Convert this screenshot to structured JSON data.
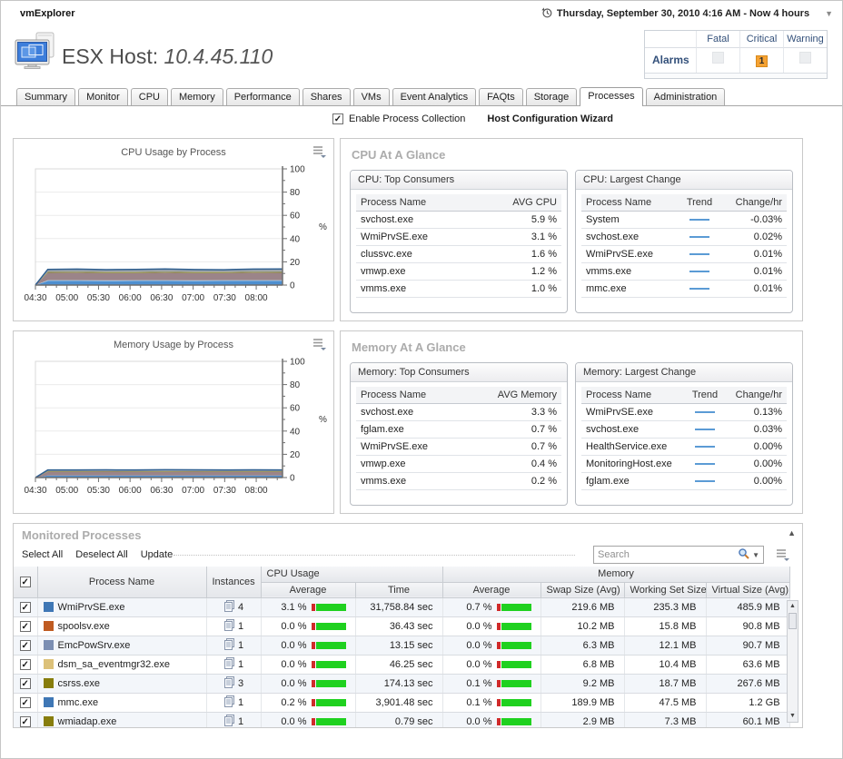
{
  "app": {
    "title": "vmExplorer",
    "time_range": "Thursday, September 30, 2010 4:16 AM - Now 4 hours"
  },
  "header": {
    "title_prefix": "ESX Host:",
    "host": "10.4.45.110",
    "alarms": {
      "row_label": "Alarms",
      "columns": [
        "Fatal",
        "Critical",
        "Warning"
      ],
      "fatal_count": "",
      "critical_count": "1",
      "warning_count": ""
    }
  },
  "tabs": {
    "items": [
      "Summary",
      "Monitor",
      "CPU",
      "Memory",
      "Performance",
      "Shares",
      "VMs",
      "Event Analytics",
      "FAQts",
      "Storage",
      "Processes",
      "Administration"
    ],
    "active": "Processes"
  },
  "subheader": {
    "checkbox_label": "Enable Process Collection",
    "checkbox_checked": true,
    "wizard_link": "Host Configuration Wizard"
  },
  "colors": {
    "accent_blue": "#33507A",
    "critical_orange": "#F5A233",
    "bar_green": "#1FD11F",
    "bar_red": "#D02A2A",
    "trend_line": "#5B9BD5",
    "title_gray": "#ACACAC"
  },
  "chart_data": [
    {
      "type": "area",
      "title": "CPU Usage by Process",
      "ylabel": "%",
      "ylim": [
        0,
        100
      ],
      "grid": true,
      "x_ticks": [
        "04:30",
        "05:00",
        "05:30",
        "06:00",
        "06:30",
        "07:00",
        "07:30",
        "08:00"
      ],
      "y_ticks": [
        0,
        20,
        40,
        60,
        80,
        100
      ],
      "stacked": true,
      "series": [
        {
          "name": "layer-blue",
          "color": "#4E8FD0",
          "values": [
            0,
            3.5,
            3.5,
            3.4,
            3.5,
            3.5,
            3.4,
            3.5,
            3.5,
            3.5
          ]
        },
        {
          "name": "layer-lightblue",
          "color": "#A8CBE8",
          "values": [
            0,
            0.7,
            0.7,
            0.7,
            0.7,
            0.7,
            0.7,
            0.7,
            0.7,
            0.7
          ]
        },
        {
          "name": "layer-mauve",
          "color": "#9B8489",
          "values": [
            0,
            6.3,
            6.4,
            6.3,
            6.2,
            6.4,
            6.3,
            6.2,
            6.4,
            6.3
          ]
        },
        {
          "name": "layer-olive",
          "color": "#8F8A33",
          "values": [
            0,
            0.8,
            0.8,
            0.8,
            0.8,
            0.8,
            0.8,
            0.8,
            0.8,
            0.8
          ]
        },
        {
          "name": "layer-gray",
          "color": "#9FA5AB",
          "values": [
            0,
            2.2,
            2.4,
            2.1,
            2.3,
            2.5,
            2.2,
            2.0,
            2.4,
            2.6
          ]
        }
      ],
      "top_stroke": "#2F5F90"
    },
    {
      "type": "area",
      "title": "Memory Usage by Process",
      "ylabel": "%",
      "ylim": [
        0,
        100
      ],
      "grid": true,
      "x_ticks": [
        "04:30",
        "05:00",
        "05:30",
        "06:00",
        "06:30",
        "07:00",
        "07:30",
        "08:00"
      ],
      "y_ticks": [
        0,
        20,
        40,
        60,
        80,
        100
      ],
      "stacked": true,
      "series": [
        {
          "name": "layer-blue",
          "color": "#4E8FD0",
          "values": [
            0,
            1.8,
            1.8,
            1.8,
            1.8,
            1.8,
            1.8,
            1.8,
            1.8,
            1.8
          ]
        },
        {
          "name": "layer-mauve",
          "color": "#9B8489",
          "values": [
            0,
            3.2,
            3.2,
            3.3,
            3.2,
            3.2,
            3.3,
            3.2,
            3.2,
            3.2
          ]
        },
        {
          "name": "layer-olive",
          "color": "#8F8A33",
          "values": [
            0,
            0.5,
            0.5,
            0.5,
            0.5,
            0.6,
            0.5,
            0.5,
            0.5,
            0.5
          ]
        },
        {
          "name": "layer-gray",
          "color": "#9FA5AB",
          "values": [
            0,
            1.0,
            1.0,
            1.0,
            1.0,
            1.1,
            1.0,
            1.0,
            1.1,
            1.0
          ]
        }
      ],
      "top_stroke": "#2F5F90"
    }
  ],
  "cpu_glance": {
    "title": "CPU At A Glance",
    "top_consumers": {
      "title": "CPU: Top Consumers",
      "columns": [
        "Process Name",
        "AVG CPU"
      ],
      "rows": [
        [
          "svchost.exe",
          "5.9 %"
        ],
        [
          "WmiPrvSE.exe",
          "3.1 %"
        ],
        [
          "clussvc.exe",
          "1.6 %"
        ],
        [
          "vmwp.exe",
          "1.2 %"
        ],
        [
          "vmms.exe",
          "1.0 %"
        ]
      ]
    },
    "largest_change": {
      "title": "CPU: Largest Change",
      "columns": [
        "Process Name",
        "Trend",
        "Change/hr"
      ],
      "rows": [
        [
          "System",
          "-0.03%"
        ],
        [
          "svchost.exe",
          "0.02%"
        ],
        [
          "WmiPrvSE.exe",
          "0.01%"
        ],
        [
          "vmms.exe",
          "0.01%"
        ],
        [
          "mmc.exe",
          "0.01%"
        ]
      ]
    }
  },
  "memory_glance": {
    "title": "Memory At A Glance",
    "top_consumers": {
      "title": "Memory: Top Consumers",
      "columns": [
        "Process Name",
        "AVG Memory"
      ],
      "rows": [
        [
          "svchost.exe",
          "3.3 %"
        ],
        [
          "fglam.exe",
          "0.7 %"
        ],
        [
          "WmiPrvSE.exe",
          "0.7 %"
        ],
        [
          "vmwp.exe",
          "0.4 %"
        ],
        [
          "vmms.exe",
          "0.2 %"
        ]
      ]
    },
    "largest_change": {
      "title": "Memory: Largest Change",
      "columns": [
        "Process Name",
        "Trend",
        "Change/hr"
      ],
      "rows": [
        [
          "WmiPrvSE.exe",
          "0.13%"
        ],
        [
          "svchost.exe",
          "0.03%"
        ],
        [
          "HealthService.exe",
          "0.00%"
        ],
        [
          "MonitoringHost.exe",
          "0.00%"
        ],
        [
          "fglam.exe",
          "0.00%"
        ]
      ]
    }
  },
  "monitored": {
    "title": "Monitored Processes",
    "actions": [
      "Select All",
      "Deselect All",
      "Update"
    ],
    "search_placeholder": "Search",
    "column_groups": {
      "cpu": "CPU Usage",
      "memory": "Memory"
    },
    "columns": {
      "name": "Process Name",
      "instances": "Instances",
      "cpu_avg": "Average",
      "cpu_time": "Time",
      "mem_avg": "Average",
      "swap": "Swap Size (Avg)",
      "working_set": "Working Set Size",
      "virtual": "Virtual Size (Avg)"
    },
    "rows": [
      {
        "name": "WmiPrvSE.exe",
        "color": "#3F77B5",
        "instances": "4",
        "cpu_avg": "3.1 %",
        "cpu_time": "31,758.84 sec",
        "mem_avg": "0.7 %",
        "swap": "219.6 MB",
        "working_set": "235.3 MB",
        "virtual": "485.9 MB",
        "checked": true
      },
      {
        "name": "spoolsv.exe",
        "color": "#BF5B21",
        "instances": "1",
        "cpu_avg": "0.0 %",
        "cpu_time": "36.43 sec",
        "mem_avg": "0.0 %",
        "swap": "10.2 MB",
        "working_set": "15.8 MB",
        "virtual": "90.8 MB",
        "checked": true
      },
      {
        "name": "EmcPowSrv.exe",
        "color": "#7C8FB3",
        "instances": "1",
        "cpu_avg": "0.0 %",
        "cpu_time": "13.15 sec",
        "mem_avg": "0.0 %",
        "swap": "6.3 MB",
        "working_set": "12.1 MB",
        "virtual": "90.7 MB",
        "checked": true
      },
      {
        "name": "dsm_sa_eventmgr32.exe",
        "color": "#DCC179",
        "instances": "1",
        "cpu_avg": "0.0 %",
        "cpu_time": "46.25 sec",
        "mem_avg": "0.0 %",
        "swap": "6.8 MB",
        "working_set": "10.4 MB",
        "virtual": "63.6 MB",
        "checked": true
      },
      {
        "name": "csrss.exe",
        "color": "#877D0C",
        "instances": "3",
        "cpu_avg": "0.0 %",
        "cpu_time": "174.13 sec",
        "mem_avg": "0.1 %",
        "swap": "9.2 MB",
        "working_set": "18.7 MB",
        "virtual": "267.6 MB",
        "checked": true
      },
      {
        "name": "mmc.exe",
        "color": "#3F77B5",
        "instances": "1",
        "cpu_avg": "0.2 %",
        "cpu_time": "3,901.48 sec",
        "mem_avg": "0.1 %",
        "swap": "189.9 MB",
        "working_set": "47.5 MB",
        "virtual": "1.2 GB",
        "checked": true
      },
      {
        "name": "wmiadap.exe",
        "color": "#877D0C",
        "instances": "1",
        "cpu_avg": "0.0 %",
        "cpu_time": "0.79 sec",
        "mem_avg": "0.0 %",
        "swap": "2.9 MB",
        "working_set": "7.3 MB",
        "virtual": "60.1 MB",
        "checked": true
      }
    ]
  }
}
